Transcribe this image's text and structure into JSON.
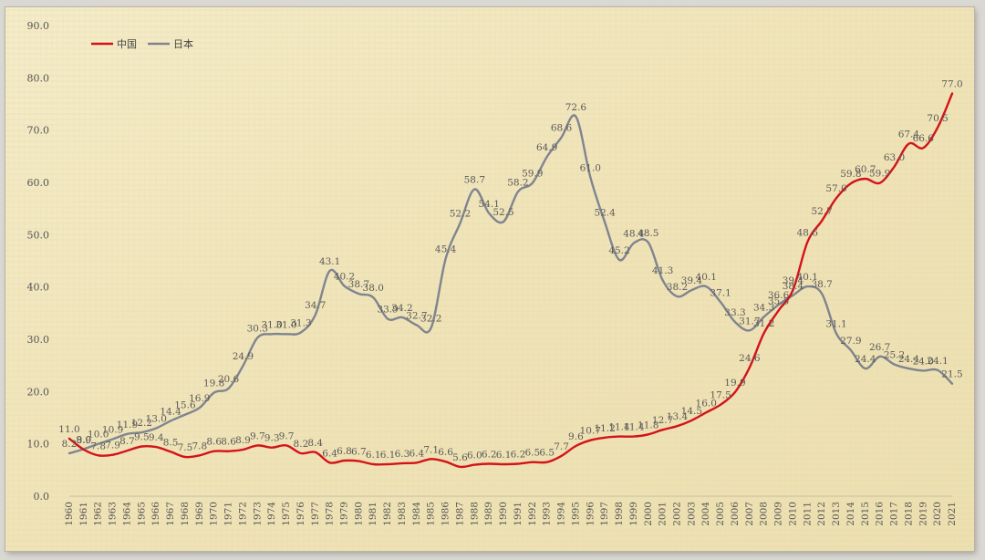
{
  "chart_data": {
    "type": "line",
    "title": "",
    "xlabel": "",
    "ylabel": "",
    "ylim": [
      0,
      90
    ],
    "yticks": [
      "0.0",
      "10.0",
      "20.0",
      "30.0",
      "40.0",
      "50.0",
      "60.0",
      "70.0",
      "80.0",
      "90.0"
    ],
    "x": [
      "1960",
      "1961",
      "1962",
      "1963",
      "1964",
      "1965",
      "1966",
      "1967",
      "1968",
      "1969",
      "1970",
      "1971",
      "1972",
      "1973",
      "1974",
      "1975",
      "1976",
      "1977",
      "1978",
      "1979",
      "1980",
      "1981",
      "1982",
      "1983",
      "1984",
      "1985",
      "1986",
      "1987",
      "1988",
      "1989",
      "1990",
      "1991",
      "1992",
      "1993",
      "1994",
      "1995",
      "1996",
      "1997",
      "1998",
      "1999",
      "2000",
      "2001",
      "2002",
      "2003",
      "2004",
      "2005",
      "2006",
      "2007",
      "2008",
      "2009",
      "2010",
      "2011",
      "2012",
      "2013",
      "2014",
      "2015",
      "2016",
      "2017",
      "2018",
      "2019",
      "2020",
      "2021"
    ],
    "legend_position": "top-left",
    "grid": false,
    "series": [
      {
        "name": "中国",
        "color": "#d4121a",
        "values": [
          11.0,
          8.9,
          7.8,
          7.9,
          8.7,
          9.5,
          9.4,
          8.5,
          7.5,
          7.8,
          8.6,
          8.6,
          8.9,
          9.7,
          9.3,
          9.7,
          8.2,
          8.4,
          6.4,
          6.8,
          6.7,
          6.1,
          6.1,
          6.3,
          6.4,
          7.1,
          6.6,
          5.6,
          6.0,
          6.2,
          6.1,
          6.2,
          6.5,
          6.5,
          7.7,
          9.6,
          10.7,
          11.2,
          11.4,
          11.4,
          11.8,
          12.7,
          13.4,
          14.5,
          16.0,
          17.5,
          19.9,
          24.6,
          31.2,
          35.5,
          39.4,
          48.6,
          52.7,
          57.0,
          59.8,
          60.7,
          59.9,
          63.0,
          67.4,
          66.6,
          70.5,
          77.0
        ],
        "labels": [
          "11.0",
          "8.9",
          "7.8",
          "7.9",
          "8.7",
          "9.5",
          "9.4",
          "8.5",
          "7.5",
          "7.8",
          "8.6",
          "8.6",
          "8.9",
          "9.7",
          "9.3",
          "9.7",
          "8.2",
          "8.4",
          "6.4",
          "6.8",
          "6.7",
          "6.1",
          "6.1",
          "6.3",
          "6.4",
          "7.1",
          "6.6",
          "5.6",
          "6.0",
          "6.2",
          "6.1",
          "6.2",
          "6.5",
          "6.5",
          "7.7",
          "9.6",
          "10.7",
          "11.2",
          "11.4",
          "11.4",
          "11.8",
          "12.7",
          "13.4",
          "14.5",
          "16.0",
          "17.5",
          "19.9",
          "24.6",
          "31.2",
          "35.5",
          "39.4",
          "48.6",
          "52.7",
          "57.0",
          "59.8",
          "60.7",
          "59.9",
          "63.0",
          "67.4",
          "66.6",
          "70.5",
          "77.0"
        ]
      },
      {
        "name": "日本",
        "color": "#7f8490",
        "values": [
          8.2,
          9.0,
          10.0,
          10.9,
          11.9,
          12.2,
          13.0,
          14.4,
          15.6,
          16.9,
          19.8,
          20.6,
          24.9,
          30.3,
          31.0,
          31.0,
          31.3,
          34.7,
          43.1,
          40.2,
          38.7,
          38.0,
          33.9,
          34.2,
          32.7,
          32.2,
          45.4,
          52.2,
          58.7,
          54.1,
          52.5,
          58.2,
          59.9,
          64.9,
          68.6,
          72.6,
          61.0,
          52.4,
          45.2,
          48.4,
          48.5,
          41.3,
          38.2,
          39.4,
          40.1,
          37.1,
          33.3,
          31.7,
          34.3,
          36.6,
          38.4,
          40.1,
          38.7,
          31.1,
          27.9,
          24.4,
          26.7,
          25.2,
          24.4,
          24.0,
          24.1,
          21.5
        ],
        "labels": [
          "8.2",
          "9.0",
          "10.0",
          "10.9",
          "11.9",
          "12.2",
          "13.0",
          "14.4",
          "15.6",
          "16.9",
          "19.8",
          "20.6",
          "24.9",
          "30.3",
          "31.0",
          "31.0",
          "31.3",
          "34.7",
          "43.1",
          "40.2",
          "38.7",
          "38.0",
          "33.9",
          "34.2",
          "32.7",
          "32.2",
          "45.4",
          "52.2",
          "58.7",
          "54.1",
          "52.5",
          "58.2",
          "59.9",
          "64.9",
          "68.6",
          "72.6",
          "61.0",
          "52.4",
          "45.2",
          "48.4",
          "48.5",
          "41.3",
          "38.2",
          "39.4",
          "40.1",
          "37.1",
          "33.3",
          "31.7",
          "34.3",
          "36.6",
          "38.4",
          "40.1",
          "38.7",
          "31.1",
          "27.9",
          "24.4",
          "26.7",
          "25.2",
          "24.4",
          "24.0",
          "24.1",
          "21.5"
        ]
      }
    ]
  }
}
